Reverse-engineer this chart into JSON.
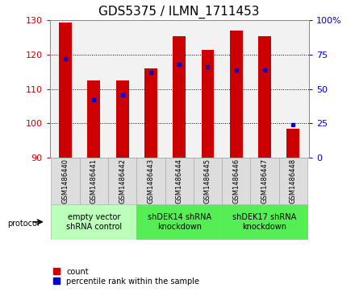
{
  "title": "GDS5375 / ILMN_1711453",
  "samples": [
    "GSM1486440",
    "GSM1486441",
    "GSM1486442",
    "GSM1486443",
    "GSM1486444",
    "GSM1486445",
    "GSM1486446",
    "GSM1486447",
    "GSM1486448"
  ],
  "counts": [
    129.5,
    112.5,
    112.5,
    116.0,
    125.5,
    121.5,
    127.0,
    125.5,
    98.5
  ],
  "percentiles": [
    72,
    42,
    46,
    62,
    68,
    66,
    64,
    64,
    24
  ],
  "ylim_left": [
    90,
    130
  ],
  "ylim_right": [
    0,
    100
  ],
  "yticks_left": [
    90,
    100,
    110,
    120,
    130
  ],
  "yticks_right": [
    0,
    25,
    50,
    75,
    100
  ],
  "bar_color": "#cc0000",
  "dot_color": "#0000cc",
  "background_color": "#ffffff",
  "groups": [
    {
      "label": "empty vector\nshRNA control",
      "start": 0,
      "end": 3,
      "color": "#bbffbb"
    },
    {
      "label": "shDEK14 shRNA\nknockdown",
      "start": 3,
      "end": 6,
      "color": "#55ee55"
    },
    {
      "label": "shDEK17 shRNA\nknockdown",
      "start": 6,
      "end": 9,
      "color": "#55ee55"
    }
  ],
  "protocol_label": "protocol",
  "legend_count_label": "count",
  "legend_percentile_label": "percentile rank within the sample",
  "bar_width": 0.45,
  "title_fontsize": 11,
  "tick_fontsize": 8,
  "sample_fontsize": 6,
  "group_fontsize": 7,
  "axis_label_color_left": "#cc0000",
  "axis_label_color_right": "#0000cc",
  "plot_bg": "#f2f2f2"
}
